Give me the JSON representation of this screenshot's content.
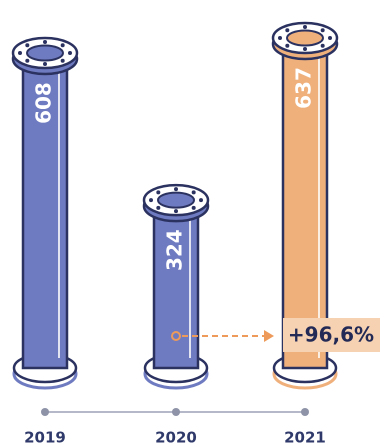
{
  "chart_data": {
    "type": "bar",
    "categories": [
      "2019",
      "2020",
      "2021"
    ],
    "values": [
      608,
      324,
      637
    ],
    "colors": [
      "#6f7bc0",
      "#6f7bc0",
      "#efb07c"
    ],
    "annotation": "+96,6%"
  }
}
